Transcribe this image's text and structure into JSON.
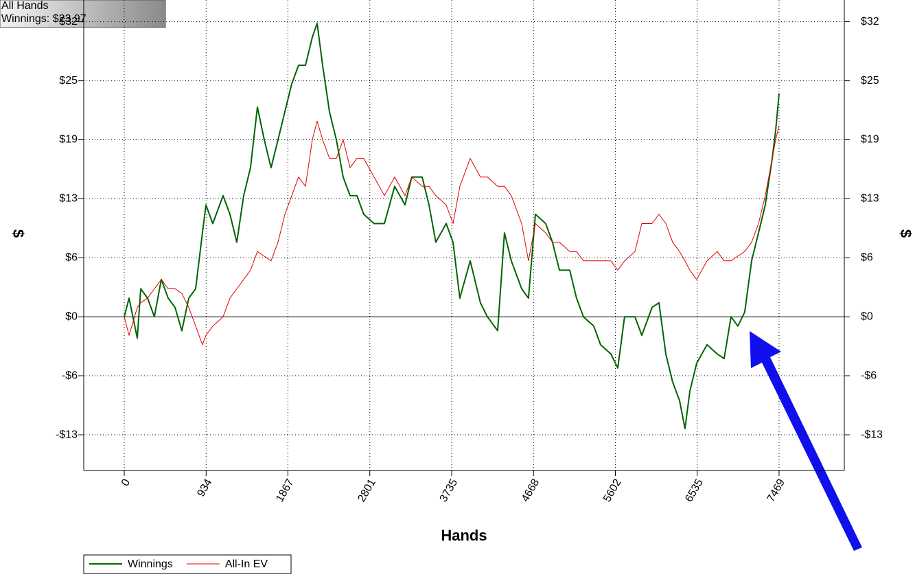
{
  "chart_data": {
    "type": "line",
    "info": [
      "All Hands",
      "Winnings: $23.97"
    ],
    "x_label": "Hands",
    "y_label": "$",
    "xlim": [
      -462,
      8213
    ],
    "ylim": [
      -16.5,
      34
    ],
    "xticks": [
      0,
      934,
      1867,
      2801,
      3735,
      4668,
      5602,
      6535,
      7469
    ],
    "yticks": [
      {
        "value": -12.67,
        "label": "-$13"
      },
      {
        "value": -6.33,
        "label": "-$6"
      },
      {
        "value": 0,
        "label": "$0"
      },
      {
        "value": 6.33,
        "label": "$6"
      },
      {
        "value": 12.67,
        "label": "$13"
      },
      {
        "value": 19,
        "label": "$19"
      },
      {
        "value": 25.33,
        "label": "$25"
      },
      {
        "value": 31.67,
        "label": "$32"
      }
    ],
    "grid": true,
    "x": [
      0,
      55,
      149,
      188,
      266,
      344,
      423,
      501,
      579,
      657,
      736,
      814,
      892,
      932,
      1010,
      1127,
      1206,
      1284,
      1362,
      1440,
      1519,
      1597,
      1675,
      1754,
      1832,
      1910,
      1989,
      2067,
      2145,
      2200,
      2263,
      2341,
      2419,
      2497,
      2576,
      2654,
      2732,
      2850,
      2967,
      3085,
      3202,
      3280,
      3398,
      3476,
      3554,
      3672,
      3750,
      3828,
      3946,
      4063,
      4142,
      4259,
      4337,
      4415,
      4533,
      4611,
      4690,
      4807,
      4885,
      4964,
      5081,
      5159,
      5238,
      5355,
      5433,
      5551,
      5629,
      5707,
      5825,
      5903,
      6020,
      6099,
      6177,
      6255,
      6334,
      6396,
      6451,
      6529,
      6647,
      6764,
      6842,
      6921,
      6999,
      7077,
      7156,
      7234,
      7312,
      7391,
      7430,
      7469
    ],
    "series": [
      {
        "name": "Winnings",
        "color": "#006400",
        "width": 2,
        "values": [
          0,
          2,
          -2.3,
          3,
          2,
          0,
          4,
          2,
          1,
          -1.5,
          2,
          3,
          9,
          12,
          10,
          13,
          11,
          8,
          13,
          16,
          22.5,
          19,
          16,
          19,
          22,
          25,
          27,
          27,
          30,
          31.5,
          27,
          22,
          19,
          15,
          13,
          13,
          11,
          10,
          10,
          14,
          12,
          15,
          15,
          12,
          8,
          10,
          8,
          2,
          6,
          1.5,
          0,
          -1.5,
          9,
          6,
          3,
          2,
          11,
          10,
          8,
          5,
          5,
          2,
          0,
          -1,
          -3,
          -4,
          -5.5,
          0,
          0,
          -2,
          1,
          1.5,
          -4,
          -7,
          -9,
          -12,
          -8,
          -5,
          -3,
          -4,
          -4.5,
          0,
          -1,
          0.5,
          6,
          9,
          12,
          17,
          20,
          23.97
        ]
      },
      {
        "name": "All-In EV",
        "color": "#e00000",
        "width": 1,
        "values": [
          0,
          -2,
          1,
          1.5,
          2,
          3,
          4,
          3,
          3,
          2.5,
          1,
          -1,
          -3,
          -2,
          -1,
          0,
          2,
          3,
          4,
          5,
          7,
          6.5,
          6,
          8,
          11,
          13,
          15,
          14,
          19,
          21,
          19,
          17,
          17,
          19,
          16,
          17,
          17,
          15,
          13,
          15,
          13,
          15,
          14,
          14,
          13,
          12,
          10,
          14,
          17,
          15,
          15,
          14,
          14,
          13,
          10,
          6,
          10,
          9,
          8,
          8,
          7,
          7,
          6,
          6,
          6,
          6,
          5,
          6,
          7,
          10,
          10,
          11,
          10,
          8,
          7,
          6,
          5,
          4,
          6,
          7,
          6,
          6,
          6.5,
          7,
          8,
          10,
          13,
          17,
          19,
          20.5
        ]
      }
    ]
  }
}
